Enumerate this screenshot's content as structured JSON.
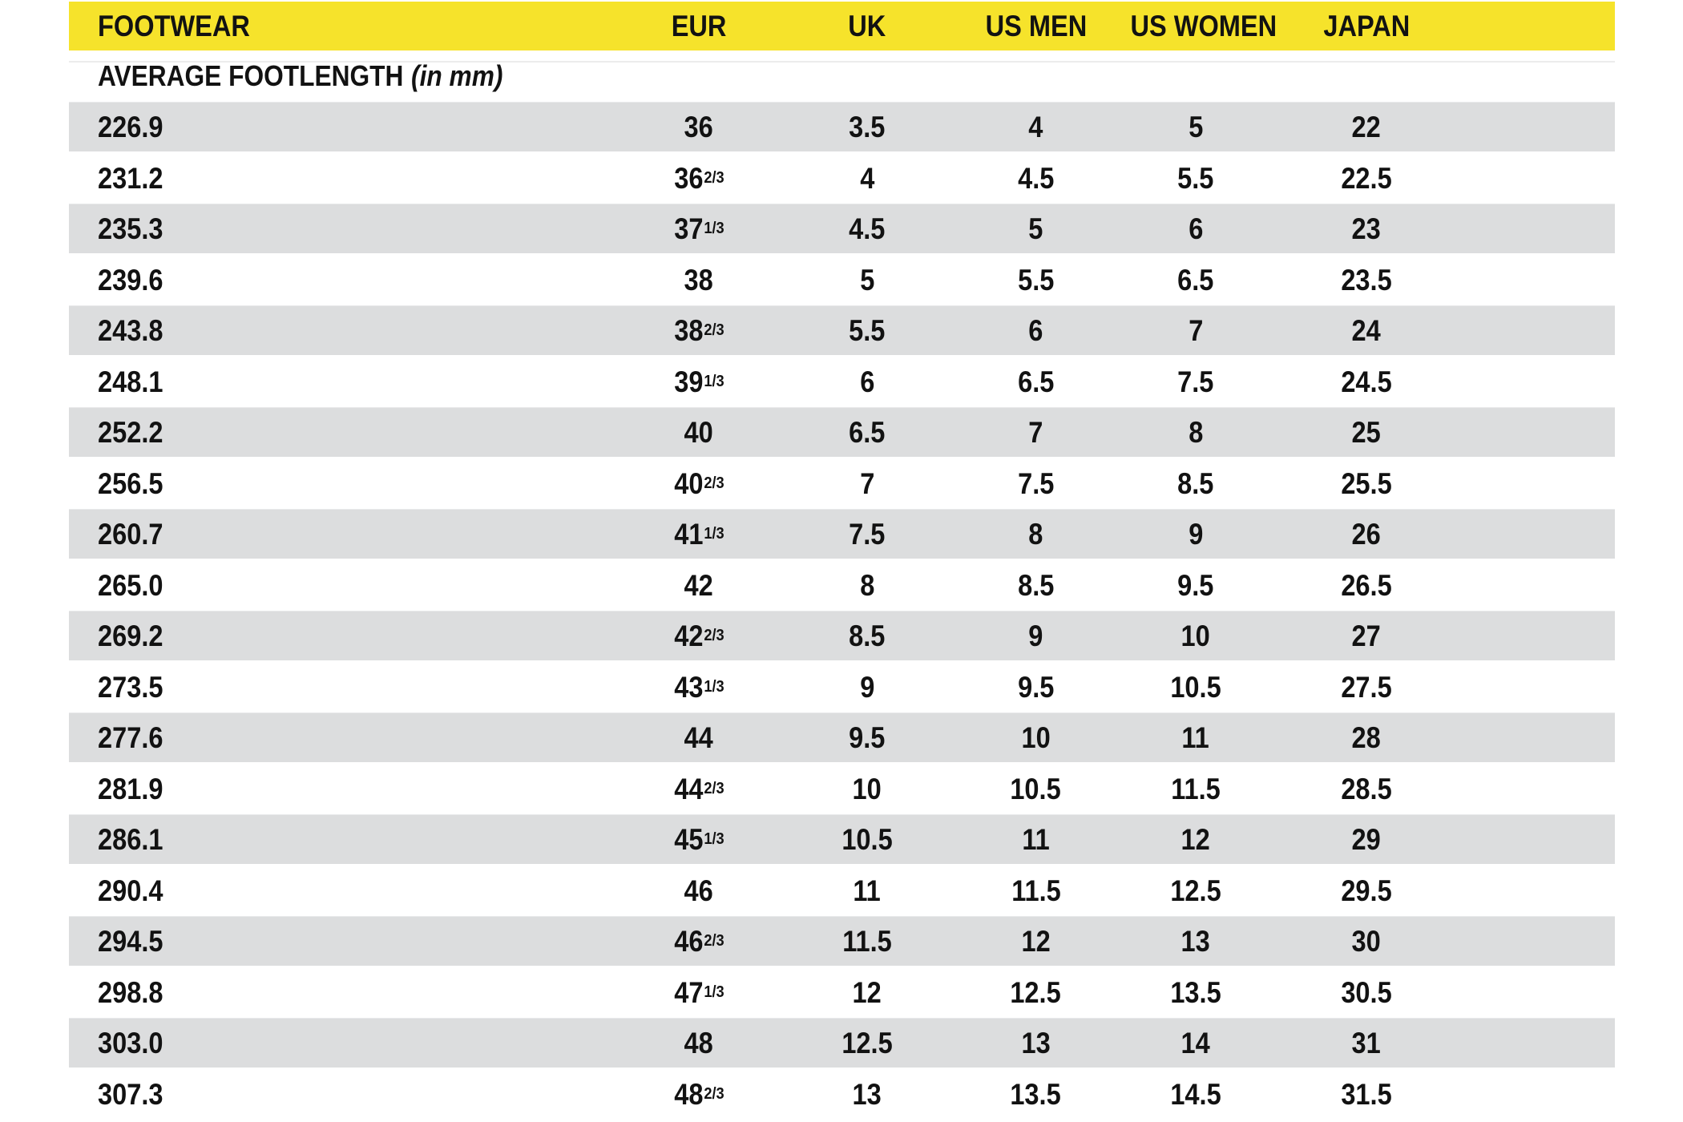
{
  "colors": {
    "header_bg": "#F6E32B",
    "stripe": "#DCDDDE",
    "text": "#121212",
    "hairline": "#ECECEC"
  },
  "chart_data": {
    "type": "table",
    "columns": [
      "FOOTWEAR",
      "EUR",
      "UK",
      "US MEN",
      "US WOMEN",
      "JAPAN"
    ],
    "subheader_label": "AVERAGE FOOTLENGTH",
    "subheader_note": "(in mm)",
    "row_keys": [
      "average_footlength_mm",
      "eur",
      "uk",
      "us_men",
      "us_women",
      "japan"
    ],
    "rows": [
      [
        "226.9",
        "36",
        "3.5",
        "4",
        "5",
        "22"
      ],
      [
        "231.2",
        "36^2/3",
        "4",
        "4.5",
        "5.5",
        "22.5"
      ],
      [
        "235.3",
        "37^1/3",
        "4.5",
        "5",
        "6",
        "23"
      ],
      [
        "239.6",
        "38",
        "5",
        "5.5",
        "6.5",
        "23.5"
      ],
      [
        "243.8",
        "38^2/3",
        "5.5",
        "6",
        "7",
        "24"
      ],
      [
        "248.1",
        "39^1/3",
        "6",
        "6.5",
        "7.5",
        "24.5"
      ],
      [
        "252.2",
        "40",
        "6.5",
        "7",
        "8",
        "25"
      ],
      [
        "256.5",
        "40^2/3",
        "7",
        "7.5",
        "8.5",
        "25.5"
      ],
      [
        "260.7",
        "41^1/3",
        "7.5",
        "8",
        "9",
        "26"
      ],
      [
        "265.0",
        "42",
        "8",
        "8.5",
        "9.5",
        "26.5"
      ],
      [
        "269.2",
        "42^2/3",
        "8.5",
        "9",
        "10",
        "27"
      ],
      [
        "273.5",
        "43^1/3",
        "9",
        "9.5",
        "10.5",
        "27.5"
      ],
      [
        "277.6",
        "44",
        "9.5",
        "10",
        "11",
        "28"
      ],
      [
        "281.9",
        "44^2/3",
        "10",
        "10.5",
        "11.5",
        "28.5"
      ],
      [
        "286.1",
        "45^1/3",
        "10.5",
        "11",
        "12",
        "29"
      ],
      [
        "290.4",
        "46",
        "11",
        "11.5",
        "12.5",
        "29.5"
      ],
      [
        "294.5",
        "46^2/3",
        "11.5",
        "12",
        "13",
        "30"
      ],
      [
        "298.8",
        "47^1/3",
        "12",
        "12.5",
        "13.5",
        "30.5"
      ],
      [
        "303.0",
        "48",
        "12.5",
        "13",
        "14",
        "31"
      ],
      [
        "307.3",
        "48^2/3",
        "13",
        "13.5",
        "14.5",
        "31.5"
      ]
    ]
  }
}
